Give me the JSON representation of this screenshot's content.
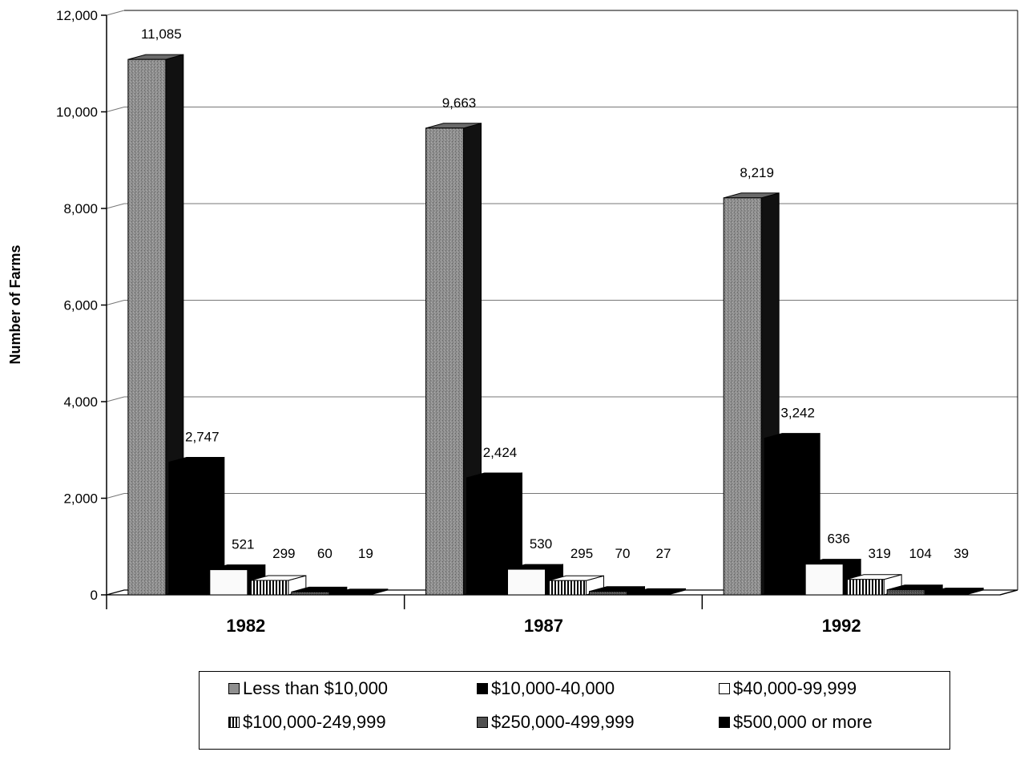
{
  "chart_data": {
    "type": "bar",
    "title": "",
    "xlabel": "",
    "ylabel": "Number of Farms",
    "ylim": [
      0,
      12000
    ],
    "yticks": [
      "0",
      "2,000",
      "4,000",
      "6,000",
      "8,000",
      "10,000",
      "12,000"
    ],
    "categories": [
      "1982",
      "1987",
      "1992"
    ],
    "grid": true,
    "legend_position": "bottom",
    "series": [
      {
        "name": "Less than $10,000",
        "values": [
          11085,
          9663,
          8219
        ],
        "labels": [
          "11,085",
          "9,663",
          "8,219"
        ],
        "color": "#8c8c8c",
        "pattern": "speckle"
      },
      {
        "name": "$10,000-40,000",
        "values": [
          2747,
          2424,
          3242
        ],
        "labels": [
          "2,747",
          "2,424",
          "3,242"
        ],
        "color": "#000000",
        "pattern": "solid"
      },
      {
        "name": "$40,000-99,999",
        "values": [
          521,
          530,
          636
        ],
        "labels": [
          "521",
          "530",
          "636"
        ],
        "color": "#ffffff",
        "pattern": "white"
      },
      {
        "name": "$100,000-249,999",
        "values": [
          299,
          295,
          319
        ],
        "labels": [
          "299",
          "295",
          "319"
        ],
        "color": "#ffffff",
        "pattern": "vstripes"
      },
      {
        "name": "$250,000-499,999",
        "values": [
          60,
          70,
          104
        ],
        "labels": [
          "60",
          "70",
          "104"
        ],
        "color": "#555555",
        "pattern": "darkspeckle"
      },
      {
        "name": "$500,000 or more",
        "values": [
          19,
          27,
          39
        ],
        "labels": [
          "19",
          "27",
          "39"
        ],
        "color": "#000000",
        "pattern": "solid"
      }
    ]
  }
}
